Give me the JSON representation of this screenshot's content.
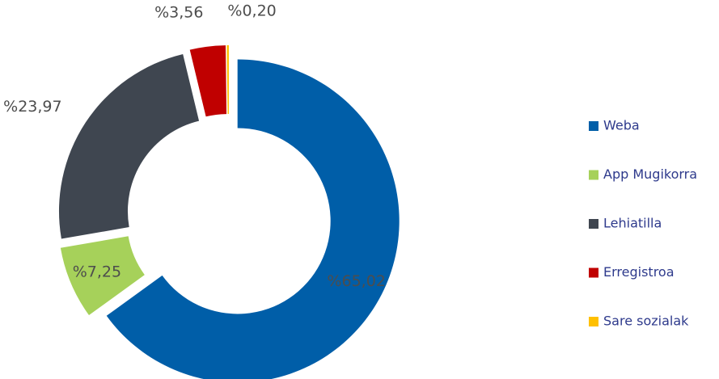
{
  "chart_data": {
    "type": "donut",
    "categories": [
      "Weba",
      "App Mugikorra",
      "Lehiatilla",
      "Erregistroa",
      "Sare sozialak"
    ],
    "values": [
      65.02,
      7.25,
      23.97,
      3.56,
      0.2
    ],
    "value_labels": [
      "%65,02",
      "%7,25",
      "%23,97",
      "%3,56",
      "%0,20"
    ],
    "colors": [
      "#005ea8",
      "#a6d15a",
      "#3f4650",
      "#c00000",
      "#ffc000"
    ],
    "legend": "right"
  }
}
